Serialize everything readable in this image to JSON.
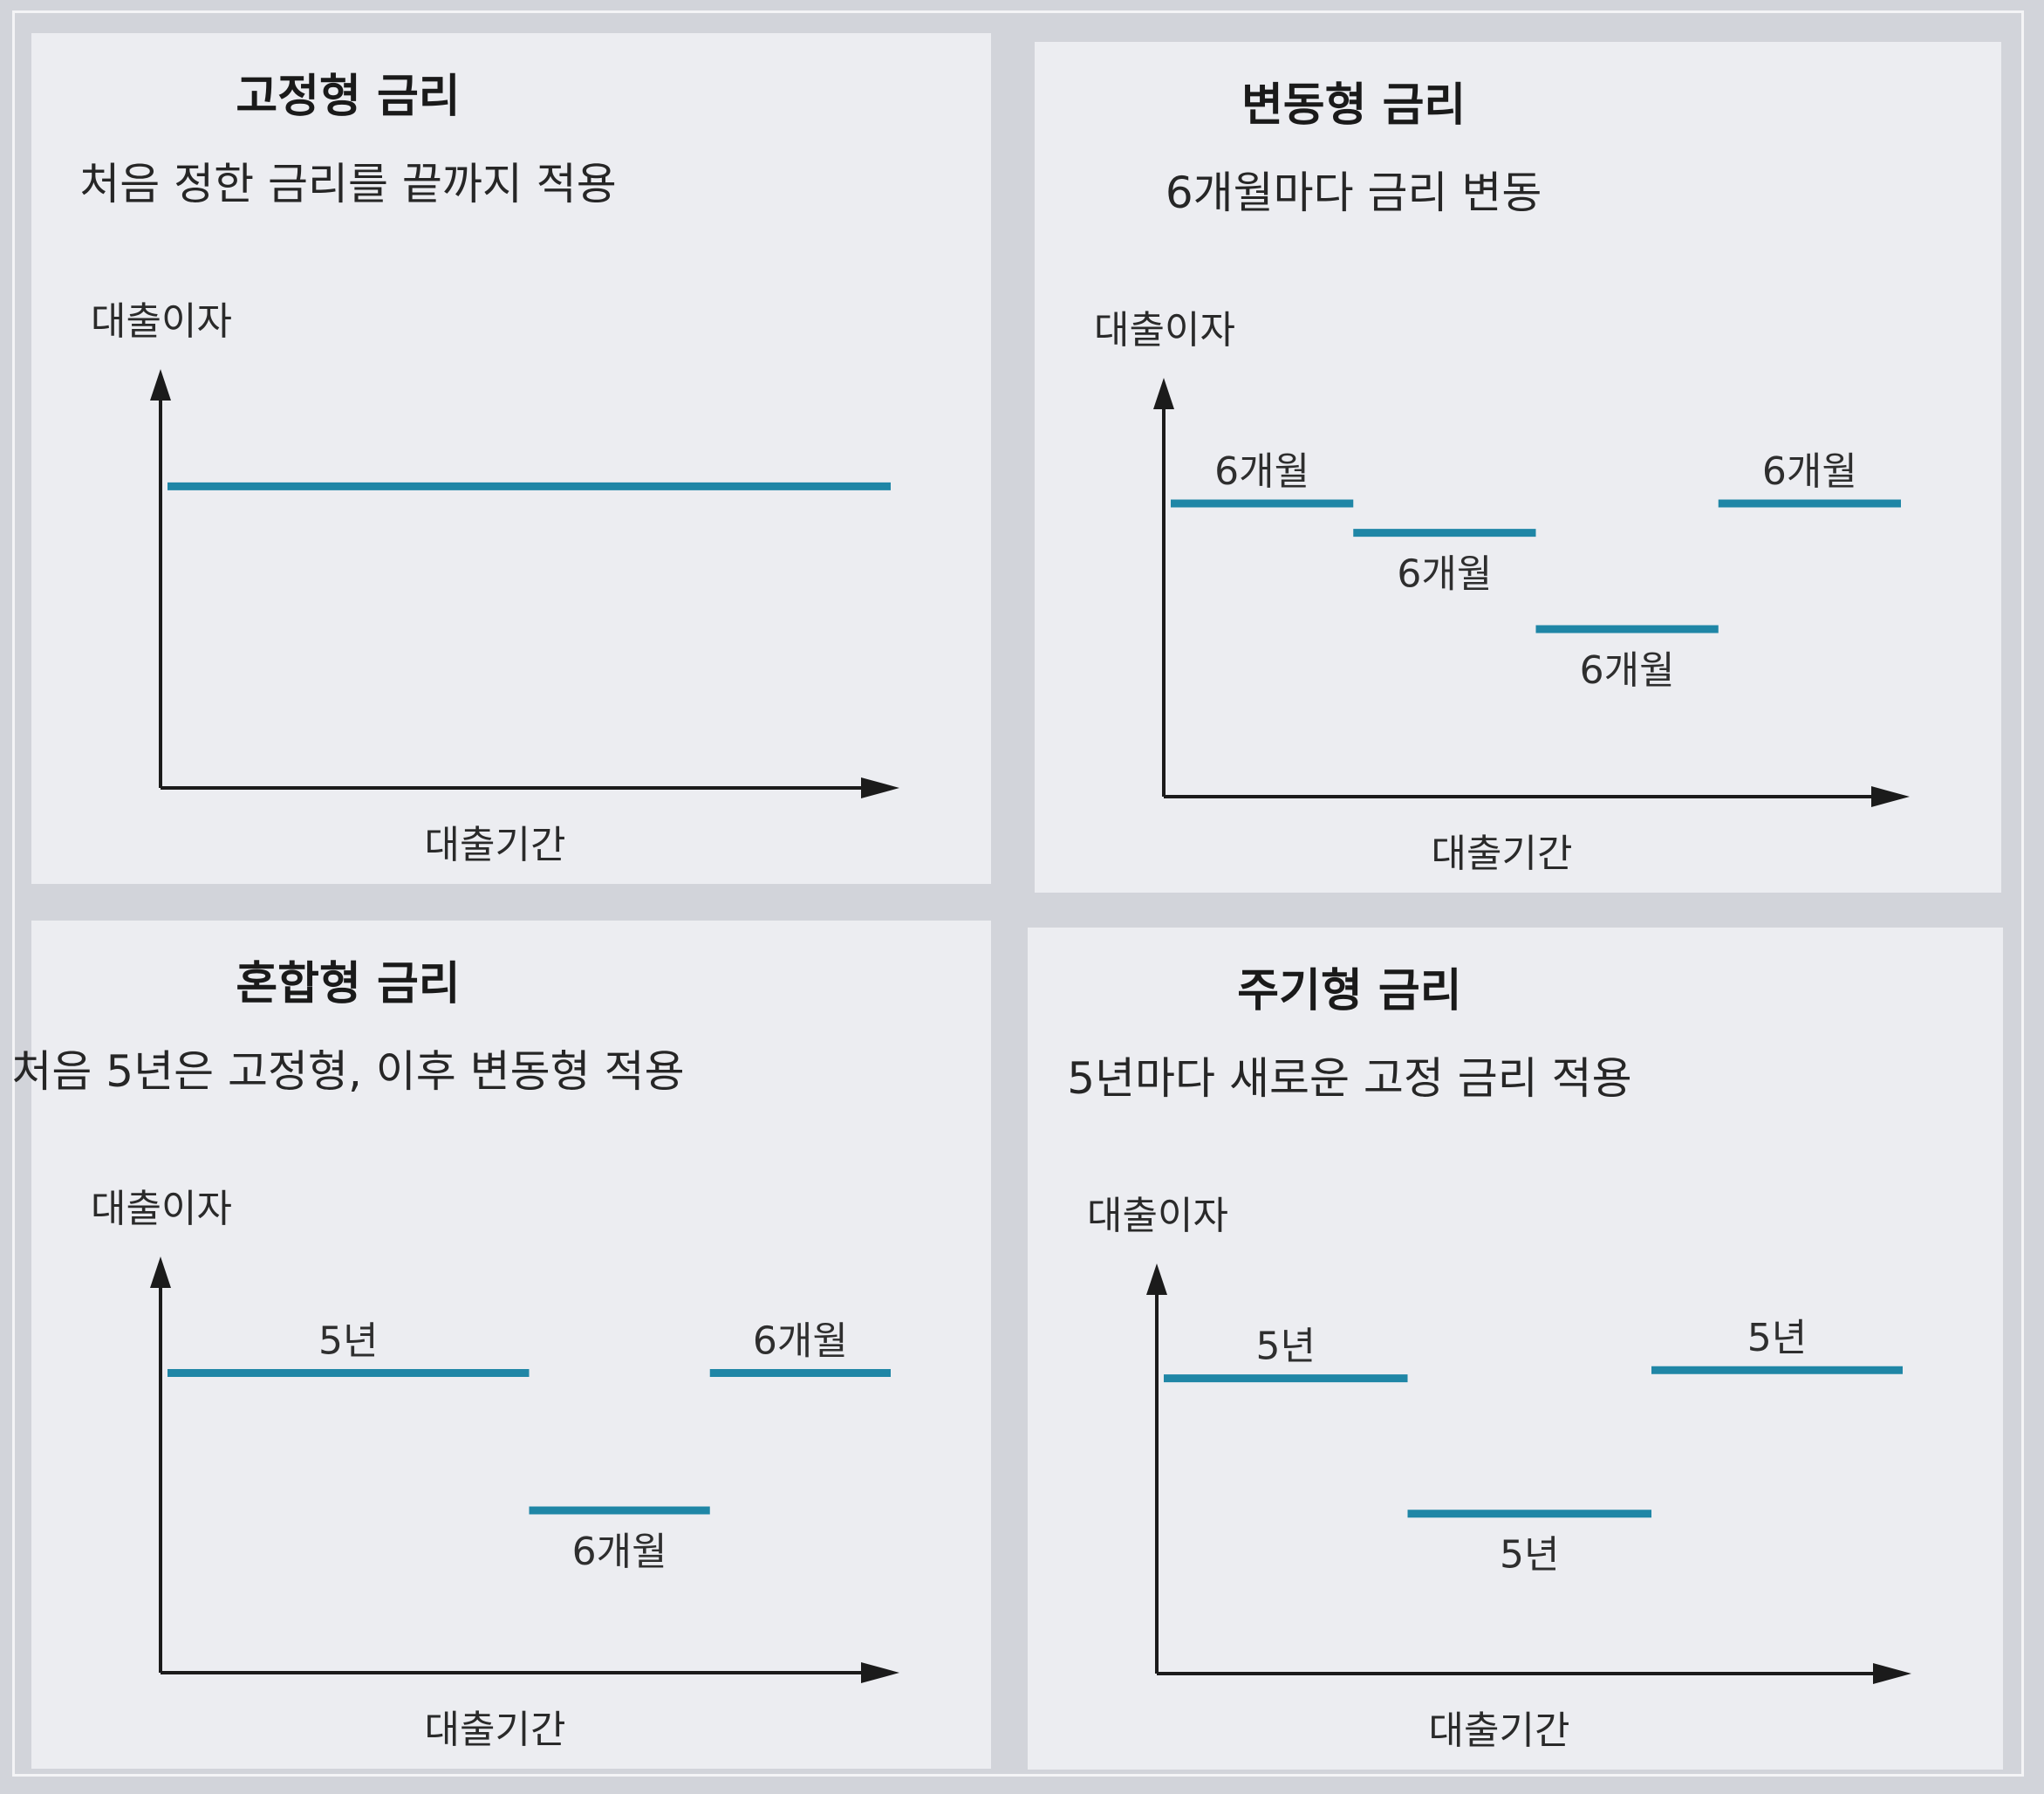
{
  "colors": {
    "segment": "#1f86a6",
    "axis": "#1b1b1b"
  },
  "panels": [
    {
      "id": "fixed",
      "title": "고정형 금리",
      "subtitle": "처음 정한 금리를 끝까지 적용",
      "y_axis_label": "대출이자",
      "x_axis_label": "대출기간",
      "segments": [
        {
          "start": 0.0,
          "end": 1.0,
          "level": 0.72,
          "label": ""
        }
      ]
    },
    {
      "id": "variable",
      "title": "변동형 금리",
      "subtitle": "6개월마다 금리 변동",
      "y_axis_label": "대출이자",
      "x_axis_label": "대출기간",
      "segments": [
        {
          "start": 0.0,
          "end": 0.25,
          "level": 0.7,
          "label": "6개월",
          "label_pos": "above"
        },
        {
          "start": 0.25,
          "end": 0.5,
          "level": 0.63,
          "label": "6개월",
          "label_pos": "below"
        },
        {
          "start": 0.5,
          "end": 0.75,
          "level": 0.4,
          "label": "6개월",
          "label_pos": "below"
        },
        {
          "start": 0.75,
          "end": 1.0,
          "level": 0.7,
          "label": "6개월",
          "label_pos": "above"
        }
      ]
    },
    {
      "id": "mixed",
      "title": "혼합형 금리",
      "subtitle": "처음 5년은 고정형, 이후 변동형 적용",
      "y_axis_label": "대출이자",
      "x_axis_label": "대출기간",
      "segments": [
        {
          "start": 0.0,
          "end": 0.5,
          "level": 0.72,
          "label": "5년",
          "label_pos": "above"
        },
        {
          "start": 0.5,
          "end": 0.75,
          "level": 0.39,
          "label": "6개월",
          "label_pos": "below"
        },
        {
          "start": 0.75,
          "end": 1.0,
          "level": 0.72,
          "label": "6개월",
          "label_pos": "above"
        }
      ]
    },
    {
      "id": "periodic",
      "title": "주기형 금리",
      "subtitle": "5년마다 새로운 고정 금리 적용",
      "y_axis_label": "대출이자",
      "x_axis_label": "대출기간",
      "segments": [
        {
          "start": 0.0,
          "end": 0.33,
          "level": 0.72,
          "label": "5년",
          "label_pos": "above"
        },
        {
          "start": 0.33,
          "end": 0.66,
          "level": 0.39,
          "label": "5년",
          "label_pos": "below"
        },
        {
          "start": 0.66,
          "end": 1.0,
          "level": 0.74,
          "label": "5년",
          "label_pos": "above"
        }
      ]
    }
  ]
}
